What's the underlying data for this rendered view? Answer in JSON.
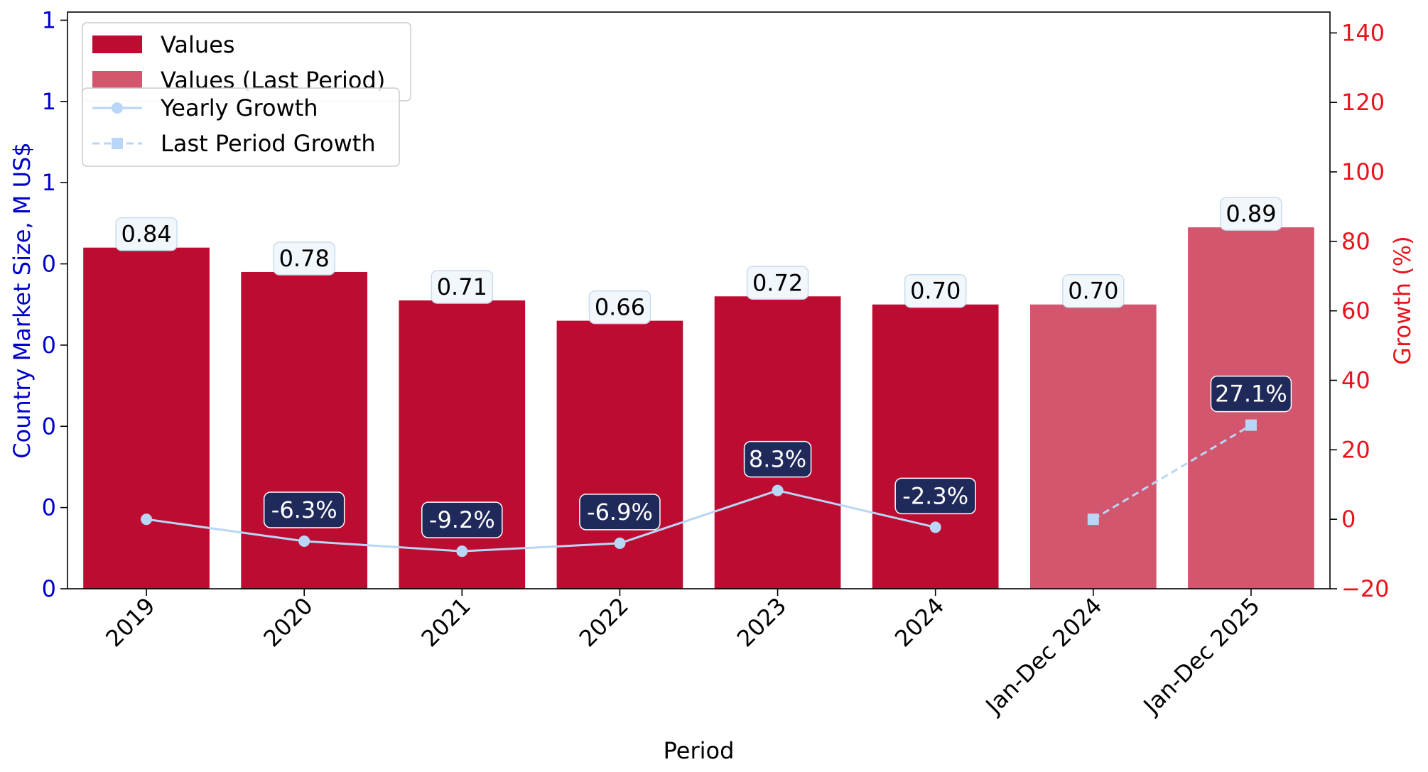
{
  "chart_data": {
    "type": "bar",
    "xlabel": "Period",
    "ylabel_left": "Country Market Size, M US$",
    "ylabel_right": "Growth (%)",
    "categories": [
      "2019",
      "2020",
      "2021",
      "2022",
      "2023",
      "2024",
      "Jan-Dec 2024",
      "Jan-Dec 2025"
    ],
    "series": [
      {
        "name": "Values",
        "kind": "bar",
        "color": "#BC0C31",
        "values": [
          0.84,
          0.78,
          0.71,
          0.66,
          0.72,
          0.7,
          null,
          null
        ],
        "labels": [
          "0.84",
          "0.78",
          "0.71",
          "0.66",
          "0.72",
          "0.70",
          "",
          ""
        ]
      },
      {
        "name": "Values (Last Period)",
        "kind": "bar",
        "color": "#D2566E",
        "values": [
          null,
          null,
          null,
          null,
          null,
          null,
          0.7,
          0.89
        ],
        "labels": [
          "",
          "",
          "",
          "",
          "",
          "",
          "0.70",
          "0.89"
        ]
      },
      {
        "name": "Yearly Growth",
        "kind": "line",
        "style": "solid",
        "marker": "circle",
        "color": "#B8D6F5",
        "values": [
          0.0,
          -6.3,
          -9.2,
          -6.9,
          8.3,
          -2.3,
          null,
          null
        ],
        "labels": [
          "",
          "-6.3%",
          "-9.2%",
          "-6.9%",
          "8.3%",
          "-2.3%",
          "",
          ""
        ]
      },
      {
        "name": "Last Period Growth",
        "kind": "line",
        "style": "dashed",
        "marker": "square",
        "color": "#B8D6F5",
        "values": [
          null,
          null,
          null,
          null,
          null,
          null,
          0.0,
          27.1
        ],
        "labels": [
          "",
          "",
          "",
          "",
          "",
          "",
          "",
          "27.1%"
        ]
      }
    ],
    "ylim_left": [
      0,
      1.42
    ],
    "yticks_left": [
      0,
      0.2,
      0.4,
      0.6,
      0.8,
      1.0,
      1.2,
      1.4
    ],
    "yticklabels_left": [
      "0",
      "0",
      "0",
      "0",
      "0",
      "1",
      "1",
      "1"
    ],
    "ylim_right": [
      -20,
      146
    ],
    "yticks_right": [
      -20,
      0,
      20,
      40,
      60,
      80,
      100,
      120,
      140
    ],
    "yticklabels_right": [
      "−20",
      "0",
      "20",
      "40",
      "60",
      "80",
      "100",
      "120",
      "140"
    ],
    "left_axis_color": "#0000CC",
    "right_axis_color": "#E8141C",
    "growth_label_bg": "#1F2A5A",
    "value_label_bg": "#F2F7FC",
    "legend_placement": "top-left",
    "grid": false
  }
}
